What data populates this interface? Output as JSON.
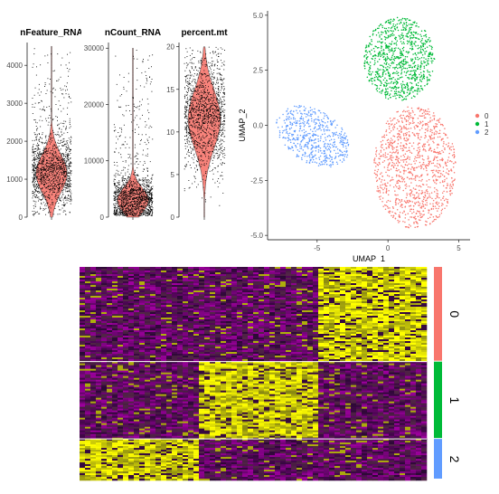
{
  "chart_data": [
    {
      "type": "violin",
      "title": "nFeature_RNA",
      "ylim": [
        0,
        4600
      ],
      "yticks": [
        0,
        1000,
        2000,
        3000,
        4000
      ],
      "median": 1150,
      "dense_range": [
        600,
        2200
      ],
      "max": 4500,
      "fill_color": "#f8766d"
    },
    {
      "type": "violin",
      "title": "nCount_RNA",
      "ylim": [
        0,
        31000
      ],
      "yticks": [
        0,
        10000,
        20000,
        30000
      ],
      "median": 3000,
      "dense_range": [
        1000,
        8000
      ],
      "max": 30000,
      "fill_color": "#f8766d"
    },
    {
      "type": "violin",
      "title": "percent.mt",
      "ylim": [
        0,
        20.5
      ],
      "yticks": [
        0,
        5,
        10,
        15,
        20
      ],
      "median": 11.5,
      "dense_range": [
        6,
        17
      ],
      "max": 20,
      "fill_color": "#f8766d"
    },
    {
      "type": "scatter",
      "title": "",
      "xlabel": "UMAP_1",
      "ylabel": "UMAP_2",
      "xlim": [
        -8.5,
        5.8
      ],
      "ylim": [
        -5.2,
        5.2
      ],
      "xticks": [
        -5,
        0,
        5
      ],
      "xtick_labels": [
        "-5",
        "0",
        "5"
      ],
      "yticks": [
        -5,
        -2.5,
        0,
        2.5,
        5
      ],
      "ytick_labels": [
        "-5.0",
        "-2.5",
        "0.0",
        "2.5",
        "5.0"
      ],
      "legend_position": "right",
      "series": [
        {
          "name": "0",
          "color": "#f8766d",
          "center": [
            1.8,
            -1.8
          ],
          "extent": [
            [
              -1.5,
              5
            ],
            [
              -5,
              0.8
            ]
          ]
        },
        {
          "name": "1",
          "color": "#00ba38",
          "center": [
            0.5,
            2.8
          ],
          "extent": [
            [
              -2,
              3.5
            ],
            [
              0.5,
              5
            ]
          ]
        },
        {
          "name": "2",
          "color": "#619cff",
          "center": [
            -5.5,
            -0.5
          ],
          "extent": [
            [
              -8,
              -2.5
            ],
            [
              -2,
              1
            ]
          ]
        }
      ]
    },
    {
      "type": "heatmap",
      "title": "",
      "groups": [
        "0",
        "1",
        "2"
      ],
      "group_colors": [
        "#f8766d",
        "#00ba38",
        "#619cff"
      ],
      "group_row_fraction": [
        0.49,
        0.4,
        0.21
      ],
      "column_blocks_fraction": [
        0.34,
        0.335,
        0.325
      ],
      "low_color": "#ff00ff",
      "mid_color": "#000000",
      "high_color": "#ffff00"
    }
  ]
}
